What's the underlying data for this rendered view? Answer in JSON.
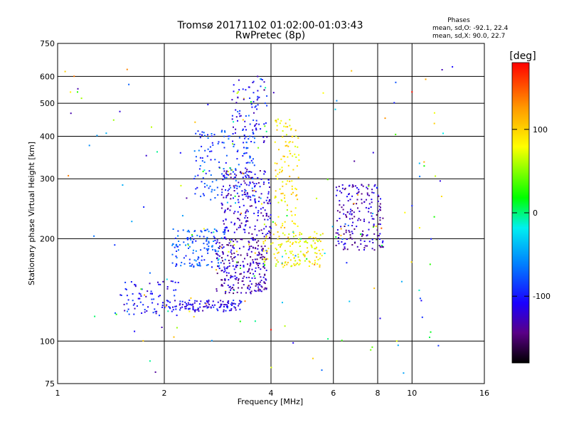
{
  "chart_data": {
    "type": "scatter",
    "title": "Tromsø 20171102 01:02:00-01:03:43",
    "subtitle": "RwPretec (8p)",
    "xlabel": "Frequency [MHz]",
    "ylabel": "Stationary phase Virtual Height [km]",
    "xscale": "log",
    "yscale": "log",
    "xlim": [
      1,
      16
    ],
    "ylim": [
      75,
      750
    ],
    "x_ticks": [
      1,
      2,
      4,
      6,
      8,
      10,
      16
    ],
    "y_ticks": [
      75,
      100,
      200,
      300,
      400,
      500,
      600,
      750
    ],
    "grid": true,
    "legend": {
      "heading": "Phases",
      "o_line": "mean, sd,O: -92.1, 22.4",
      "x_line": "mean, sd,X:  90.0, 22.7"
    },
    "colorbar": {
      "label": "[deg]",
      "range": [
        -180,
        180
      ],
      "ticks": [
        100,
        0,
        -100
      ]
    },
    "clusters": [
      {
        "name": "low-f blue trace",
        "x_range": [
          1.5,
          2.2
        ],
        "y_range": [
          118,
          150
        ],
        "phase": -105,
        "count": 90
      },
      {
        "name": "E-region trace",
        "x_range": [
          2.2,
          3.3
        ],
        "y_range": [
          122,
          132
        ],
        "phase": -110,
        "count": 110
      },
      {
        "name": "F1 cyan",
        "x_range": [
          2.1,
          3.0
        ],
        "y_range": [
          165,
          215
        ],
        "phase": -78,
        "count": 140
      },
      {
        "name": "F1 purple bands",
        "x_range": [
          2.8,
          3.9
        ],
        "y_range": [
          138,
          200
        ],
        "phase": -128,
        "count": 260
      },
      {
        "name": "F2 purple",
        "x_range": [
          2.9,
          4.0
        ],
        "y_range": [
          200,
          320
        ],
        "phase": -122,
        "count": 220
      },
      {
        "name": "F2 high cyan",
        "x_range": [
          2.4,
          3.6
        ],
        "y_range": [
          260,
          420
        ],
        "phase": -85,
        "count": 160
      },
      {
        "name": "F2 top",
        "x_range": [
          3.1,
          3.9
        ],
        "y_range": [
          380,
          600
        ],
        "phase": -105,
        "count": 90
      },
      {
        "name": "yellow X trace",
        "x_range": [
          3.8,
          5.6
        ],
        "y_range": [
          165,
          210
        ],
        "phase": 85,
        "count": 150
      },
      {
        "name": "yellow upper",
        "x_range": [
          4.1,
          4.8
        ],
        "y_range": [
          215,
          450
        ],
        "phase": 92,
        "count": 110
      },
      {
        "name": "6-8 MHz purple",
        "x_range": [
          6.1,
          8.3
        ],
        "y_range": [
          185,
          290
        ],
        "phase": -128,
        "count": 200
      },
      {
        "name": "scattered noise",
        "x_range": [
          1.02,
          12.5
        ],
        "y_range": [
          78,
          650
        ],
        "phase": 0,
        "count": 130
      }
    ],
    "isolated_points": [
      {
        "x": 4.0,
        "y": 108,
        "phase": 175
      },
      {
        "x": 10.0,
        "y": 540,
        "phase": 175
      },
      {
        "x": 13.0,
        "y": 640,
        "phase": -105
      },
      {
        "x": 10.0,
        "y": 250,
        "phase": -95
      },
      {
        "x": 1.05,
        "y": 620,
        "phase": 100
      }
    ]
  }
}
